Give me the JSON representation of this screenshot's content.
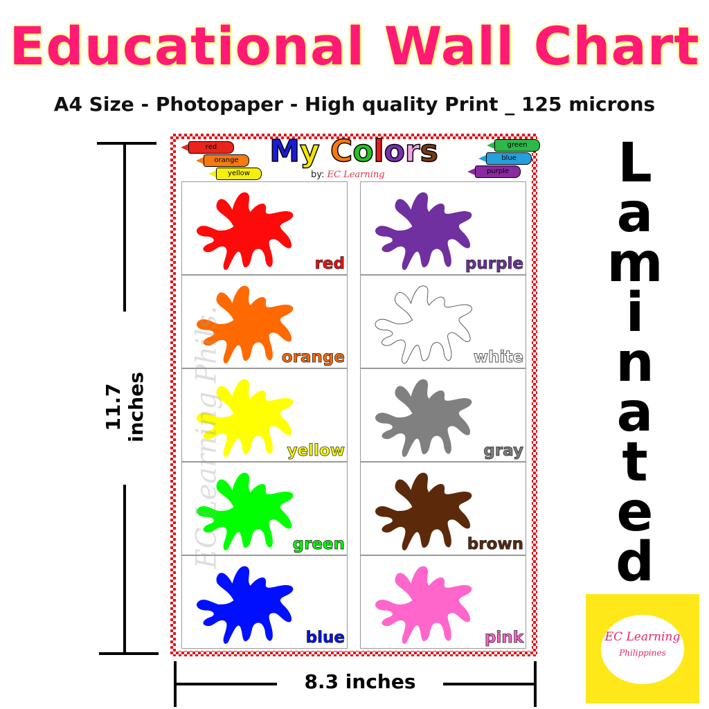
{
  "title": "Educational Wall Chart",
  "subtitle": "A4 Size - Photopaper - High quality Print _ 125 microns",
  "poster": {
    "title_letters": [
      {
        "ch": "M",
        "color": "#1a1adf"
      },
      {
        "ch": "y",
        "color": "#f5e600"
      },
      {
        "ch": " ",
        "color": "#000"
      },
      {
        "ch": "C",
        "color": "#f57a10"
      },
      {
        "ch": "o",
        "color": "#22c322"
      },
      {
        "ch": "l",
        "color": "#e81c1c"
      },
      {
        "ch": "o",
        "color": "#7a2fb0"
      },
      {
        "ch": "r",
        "color": "#f5a6e6"
      },
      {
        "ch": "s",
        "color": "#7a3a10"
      }
    ],
    "by_label": "by:",
    "by_name": "EC Learning",
    "crayons_left": [
      {
        "label": "red",
        "color": "#e8251c"
      },
      {
        "label": "orange",
        "color": "#f57a10"
      },
      {
        "label": "yellow",
        "color": "#f5ef10"
      }
    ],
    "crayons_right": [
      {
        "label": "green",
        "color": "#2db84a"
      },
      {
        "label": "blue",
        "color": "#25a0dc"
      },
      {
        "label": "purple",
        "color": "#8a2aa0"
      }
    ],
    "colors": [
      {
        "label": "red",
        "color": "#ff0a0a"
      },
      {
        "label": "purple",
        "color": "#7030a0"
      },
      {
        "label": "orange",
        "color": "#ff6a00"
      },
      {
        "label": "white",
        "color": "#ffffff"
      },
      {
        "label": "yellow",
        "color": "#ffff00"
      },
      {
        "label": "gray",
        "color": "#808080"
      },
      {
        "label": "green",
        "color": "#00ff00"
      },
      {
        "label": "brown",
        "color": "#5c2a0a"
      },
      {
        "label": "blue",
        "color": "#0010ff"
      },
      {
        "label": "pink",
        "color": "#ff66cc"
      }
    ],
    "watermark": "EC Learning Phils."
  },
  "height_label": "11.7 inches",
  "width_label": "8.3 inches",
  "laminated": "Laminated",
  "logo": {
    "line1": "EC Learning",
    "line2": "Philippines"
  }
}
